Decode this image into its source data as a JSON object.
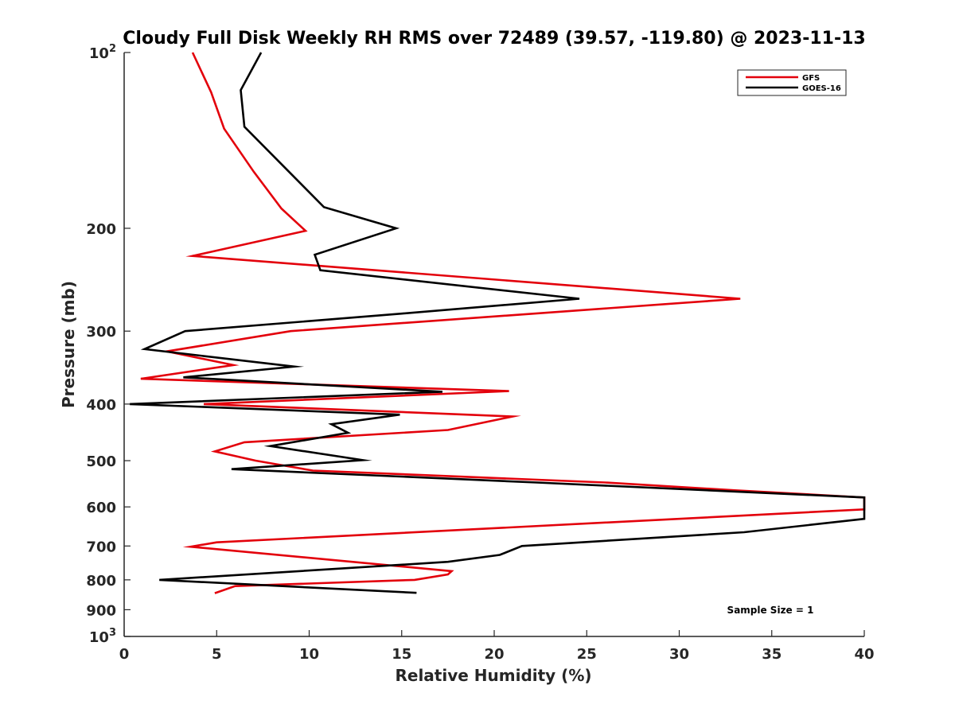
{
  "chart_data": {
    "type": "line",
    "title": "Cloudy Full Disk Weekly RH RMS over 72489 (39.57, -119.80) @ 2023-11-13",
    "xlabel": "Relative Humidity (%)",
    "ylabel": "Pressure (mb)",
    "xlim": [
      0,
      40
    ],
    "ylim": [
      100,
      1000
    ],
    "yscale": "log",
    "y_reversed": true,
    "grid": false,
    "legend_position": "top-right",
    "x_ticks": [
      "0",
      "5",
      "10",
      "15",
      "20",
      "25",
      "30",
      "35",
      "40"
    ],
    "y_ticks": [
      {
        "value": 200,
        "label": "200"
      },
      {
        "value": 300,
        "label": "300"
      },
      {
        "value": 400,
        "label": "400"
      },
      {
        "value": 500,
        "label": "500"
      },
      {
        "value": 600,
        "label": "600"
      },
      {
        "value": 700,
        "label": "700"
      },
      {
        "value": 800,
        "label": "800"
      },
      {
        "value": 900,
        "label": "900"
      }
    ],
    "y_tick_power_labels": [
      {
        "value": 100,
        "base": "10",
        "exp": "2"
      },
      {
        "value": 1000,
        "base": "10",
        "exp": "3"
      }
    ],
    "annotation": "Sample Size = 1",
    "series": [
      {
        "name": "GFS",
        "color": "#e3000b",
        "points": [
          {
            "x": 3.7,
            "p": 100
          },
          {
            "x": 4.7,
            "p": 117
          },
          {
            "x": 5.4,
            "p": 135
          },
          {
            "x": 7.0,
            "p": 160
          },
          {
            "x": 8.5,
            "p": 185
          },
          {
            "x": 9.8,
            "p": 202
          },
          {
            "x": 3.7,
            "p": 223
          },
          {
            "x": 33.3,
            "p": 264
          },
          {
            "x": 9.0,
            "p": 300
          },
          {
            "x": 2.3,
            "p": 325
          },
          {
            "x": 5.9,
            "p": 343
          },
          {
            "x": 0.9,
            "p": 362
          },
          {
            "x": 20.8,
            "p": 380
          },
          {
            "x": 4.3,
            "p": 400
          },
          {
            "x": 21.0,
            "p": 420
          },
          {
            "x": 17.5,
            "p": 443
          },
          {
            "x": 6.5,
            "p": 465
          },
          {
            "x": 4.9,
            "p": 482
          },
          {
            "x": 7.1,
            "p": 500
          },
          {
            "x": 10.2,
            "p": 520
          },
          {
            "x": 26.0,
            "p": 545
          },
          {
            "x": 33.0,
            "p": 562
          },
          {
            "x": 40.0,
            "p": 578
          },
          {
            "x": 40.0,
            "p": 606
          },
          {
            "x": 5.0,
            "p": 690
          },
          {
            "x": 3.6,
            "p": 702
          },
          {
            "x": 17.7,
            "p": 773
          },
          {
            "x": 17.5,
            "p": 783
          },
          {
            "x": 15.7,
            "p": 800
          },
          {
            "x": 6.0,
            "p": 820
          },
          {
            "x": 4.9,
            "p": 843
          }
        ]
      },
      {
        "name": "GOES-16",
        "color": "#000000",
        "points": [
          {
            "x": 7.4,
            "p": 100
          },
          {
            "x": 6.3,
            "p": 116
          },
          {
            "x": 6.5,
            "p": 134
          },
          {
            "x": 10.8,
            "p": 184
          },
          {
            "x": 14.7,
            "p": 200
          },
          {
            "x": 10.3,
            "p": 222
          },
          {
            "x": 10.6,
            "p": 236
          },
          {
            "x": 24.6,
            "p": 264
          },
          {
            "x": 15.0,
            "p": 280
          },
          {
            "x": 3.3,
            "p": 300
          },
          {
            "x": 1.1,
            "p": 322
          },
          {
            "x": 9.2,
            "p": 345
          },
          {
            "x": 3.2,
            "p": 360
          },
          {
            "x": 17.2,
            "p": 381
          },
          {
            "x": 0.3,
            "p": 400
          },
          {
            "x": 14.9,
            "p": 417
          },
          {
            "x": 11.2,
            "p": 433
          },
          {
            "x": 12.1,
            "p": 448
          },
          {
            "x": 7.9,
            "p": 472
          },
          {
            "x": 12.9,
            "p": 499
          },
          {
            "x": 5.8,
            "p": 517
          },
          {
            "x": 22.3,
            "p": 545
          },
          {
            "x": 40.0,
            "p": 578
          },
          {
            "x": 40.0,
            "p": 629
          },
          {
            "x": 33.5,
            "p": 663
          },
          {
            "x": 21.5,
            "p": 700
          },
          {
            "x": 20.3,
            "p": 725
          },
          {
            "x": 17.5,
            "p": 745
          },
          {
            "x": 1.9,
            "p": 800
          },
          {
            "x": 15.8,
            "p": 842
          }
        ]
      }
    ]
  }
}
